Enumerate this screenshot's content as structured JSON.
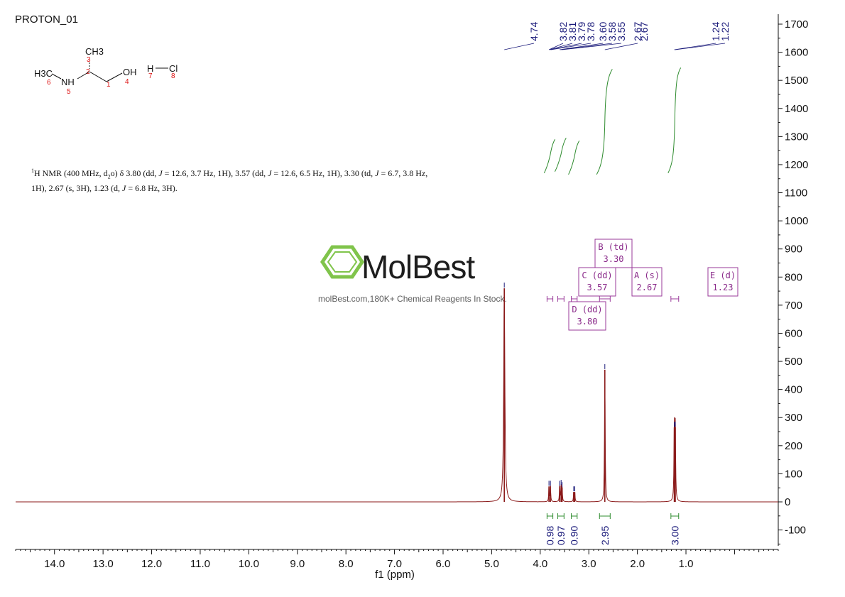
{
  "title": "PROTON_01",
  "summary": {
    "parts": [
      {
        "t": "1",
        "sup": true
      },
      {
        "t": "H NMR (400 MHz, d"
      },
      {
        "t": "2",
        "sub": true
      },
      {
        "t": "o) δ 3.80 (dd, "
      },
      {
        "t": "J",
        "it": true
      },
      {
        "t": " = 12.6, 3.7 Hz, 1H), 3.57 (dd, "
      },
      {
        "t": "J",
        "it": true
      },
      {
        "t": " = 12.6, 6.5 Hz, 1H), 3.30 (td, "
      },
      {
        "t": "J",
        "it": true
      },
      {
        "t": " = 6.7, 3.8 Hz, 1H), 2.67 (s, 3H), 1.23 (d, "
      },
      {
        "t": "J",
        "it": true
      },
      {
        "t": " = 6.8 Hz, 3H)."
      }
    ]
  },
  "watermark": {
    "brand": "MolBest",
    "tagline": "molBest.com,180K+ Chemical Reagents In Stock.",
    "color": "#7ac142"
  },
  "molecule": {
    "labels": [
      "CH3",
      "H3C",
      "NH",
      "OH",
      "H",
      "Cl"
    ],
    "atom_numbers": [
      "3",
      "2",
      "6",
      "5",
      "1",
      "4",
      "7",
      "8"
    ]
  },
  "chart_data": {
    "type": "line",
    "xlabel": "f1 (ppm)",
    "xlim": [
      14.8,
      -0.9
    ],
    "ylim": [
      -165,
      1720
    ],
    "x_ticks": [
      "14.0",
      "13.0",
      "12.0",
      "11.0",
      "10.0",
      "9.0",
      "8.0",
      "7.0",
      "6.0",
      "5.0",
      "4.0",
      "3.0",
      "2.0",
      "1.0"
    ],
    "y_ticks": [
      "1700",
      "1600",
      "1500",
      "1400",
      "1300",
      "1200",
      "1100",
      "1000",
      "900",
      "800",
      "700",
      "600",
      "500",
      "400",
      "300",
      "200",
      "100",
      "0",
      "-100"
    ],
    "peak_labels": [
      "4.74",
      "3.82",
      "3.81",
      "3.79",
      "3.78",
      "3.60",
      "3.58",
      "3.55",
      "2.67",
      "1.24",
      "1.22"
    ],
    "spectrum_peaks": [
      {
        "ppm": 4.74,
        "height": 760,
        "width": 0.014
      },
      {
        "ppm": 3.82,
        "height": 55,
        "width": 0.007
      },
      {
        "ppm": 3.79,
        "height": 55,
        "width": 0.007
      },
      {
        "ppm": 3.6,
        "height": 55,
        "width": 0.007
      },
      {
        "ppm": 3.57,
        "height": 58,
        "width": 0.007
      },
      {
        "ppm": 3.55,
        "height": 50,
        "width": 0.007
      },
      {
        "ppm": 3.31,
        "height": 35,
        "width": 0.007
      },
      {
        "ppm": 3.29,
        "height": 35,
        "width": 0.007
      },
      {
        "ppm": 2.67,
        "height": 470,
        "width": 0.008
      },
      {
        "ppm": 1.24,
        "height": 265,
        "width": 0.008
      },
      {
        "ppm": 1.22,
        "height": 265,
        "width": 0.008
      }
    ],
    "integrals": [
      {
        "value": "0.98",
        "from": 3.86,
        "to": 3.74
      },
      {
        "value": "0.97",
        "from": 3.64,
        "to": 3.51
      },
      {
        "value": "0.90",
        "from": 3.36,
        "to": 3.24
      },
      {
        "value": "2.95",
        "from": 2.78,
        "to": 2.56
      },
      {
        "value": "3.00",
        "from": 1.31,
        "to": 1.15
      }
    ],
    "multiplets": [
      {
        "label": "B (td)",
        "shift": "3.30"
      },
      {
        "label": "C (dd)",
        "shift": "3.57"
      },
      {
        "label": "A (s)",
        "shift": "2.67"
      },
      {
        "label": "E (d)",
        "shift": "1.23"
      },
      {
        "label": "D (dd)",
        "shift": "3.80"
      }
    ],
    "colors": {
      "spectrum": "#8b1a1a",
      "integral": "#2e8b2e",
      "peak_label": "#1a1a7a",
      "multiplet": "#9a3a9a"
    }
  }
}
